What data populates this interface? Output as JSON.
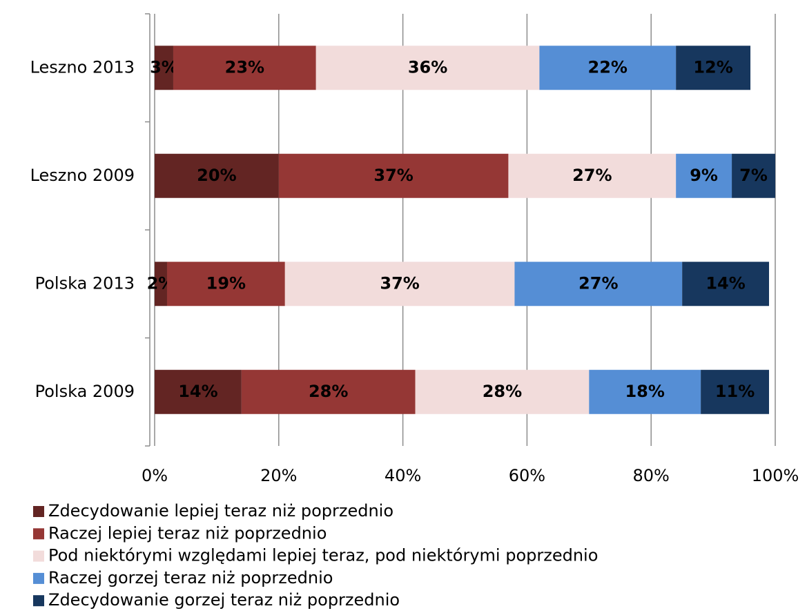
{
  "chart_data": {
    "type": "bar",
    "orientation": "horizontal",
    "stacked": true,
    "categories": [
      "Leszno 2013",
      "Leszno 2009",
      "Polska 2013",
      "Polska 2009"
    ],
    "series": [
      {
        "name": "Zdecydowanie lepiej teraz niż poprzednio",
        "color": "#632523",
        "values": [
          3,
          20,
          2,
          14
        ],
        "value_labels": [
          "3%",
          "20%",
          "2%",
          "14%"
        ]
      },
      {
        "name": "Raczej lepiej teraz niż poprzednio",
        "color": "#953735",
        "values": [
          23,
          37,
          19,
          28
        ],
        "value_labels": [
          "23%",
          "37%",
          "19%",
          "28%"
        ]
      },
      {
        "name": "Pod niektórymi względami lepiej teraz, pod niektórymi poprzednio",
        "color": "#f2dcdb",
        "values": [
          36,
          27,
          37,
          28
        ],
        "value_labels": [
          "36%",
          "27%",
          "37%",
          "28%"
        ]
      },
      {
        "name": "Raczej gorzej teraz niż poprzednio",
        "color": "#558ed5",
        "values": [
          22,
          9,
          27,
          18
        ],
        "value_labels": [
          "22%",
          "9%",
          "27%",
          "18%"
        ]
      },
      {
        "name": "Zdecydowanie gorzej teraz niż poprzednio",
        "color": "#17375e",
        "values": [
          12,
          7,
          14,
          11
        ],
        "value_labels": [
          "12%",
          "7%",
          "14%",
          "11%"
        ]
      }
    ],
    "xlim": [
      0,
      100
    ],
    "xticks": [
      {
        "value": 0,
        "label": "0%"
      },
      {
        "value": 20,
        "label": "20%"
      },
      {
        "value": 40,
        "label": "40%"
      },
      {
        "value": 60,
        "label": "60%"
      },
      {
        "value": 80,
        "label": "80%"
      },
      {
        "value": 100,
        "label": "100%"
      }
    ],
    "grid": true,
    "legend": "bottom"
  }
}
